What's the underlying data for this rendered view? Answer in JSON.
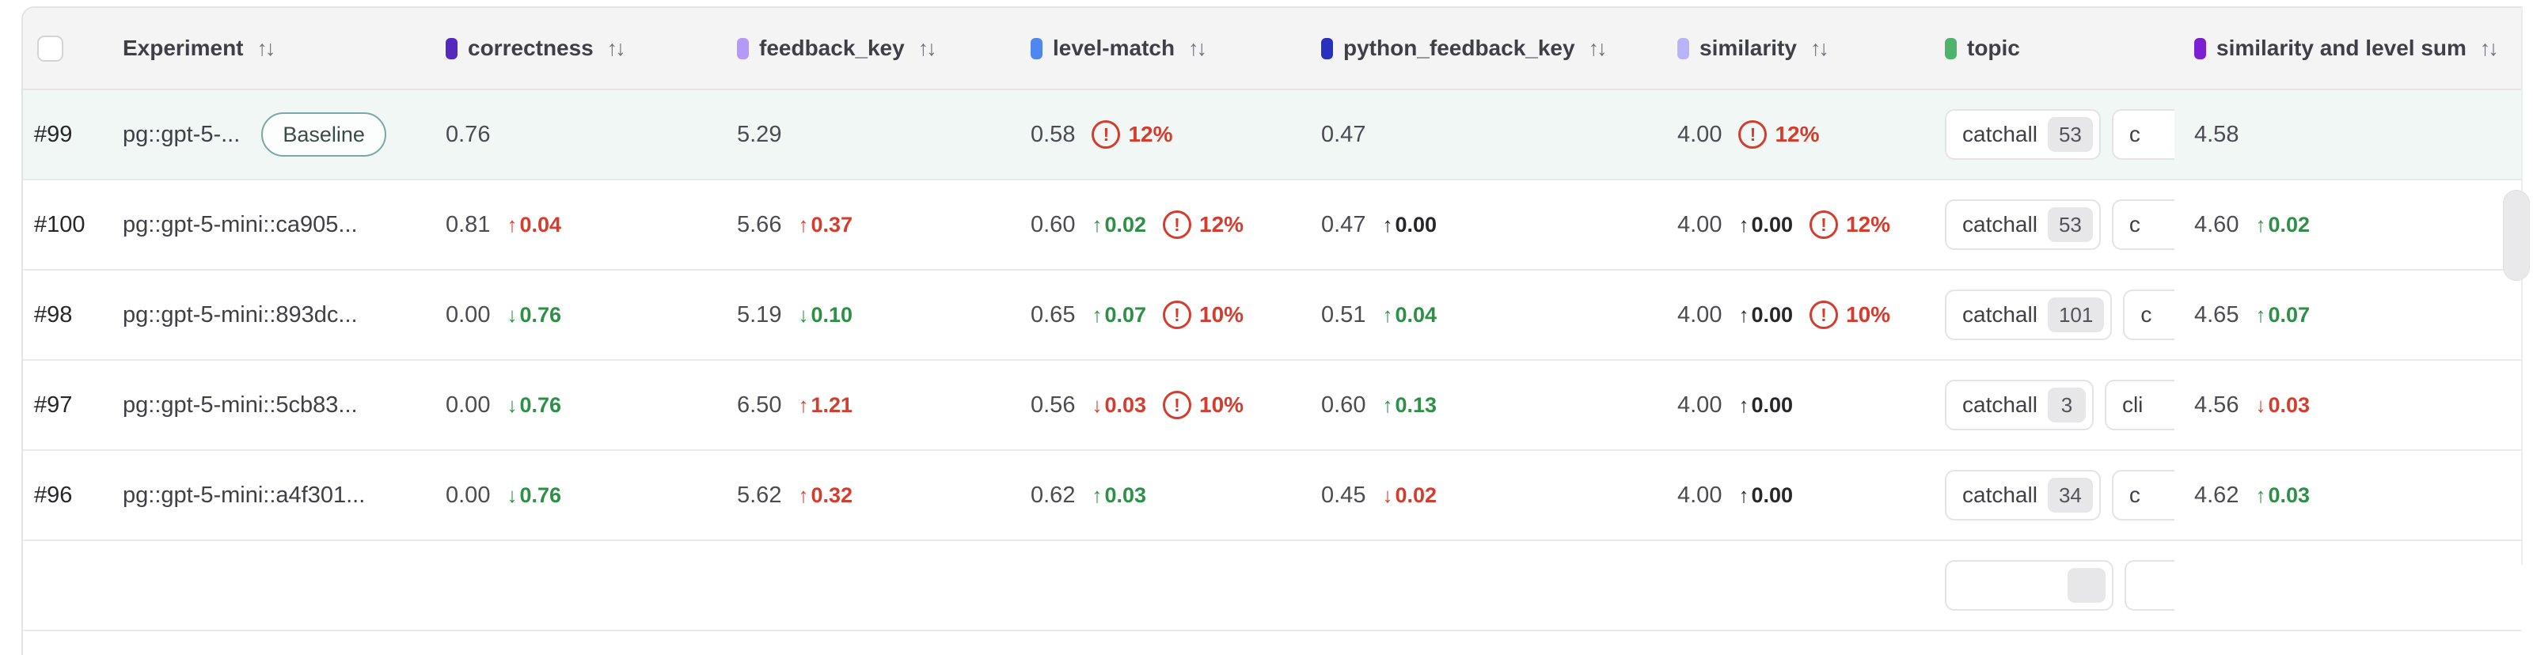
{
  "table": {
    "sort_icon": "↑↓",
    "select_all_checked": false,
    "columns": [
      {
        "key": "experiment",
        "label": "Experiment",
        "dot": null,
        "sortable": true
      },
      {
        "key": "correctness",
        "label": "correctness",
        "dot": "#5429bd",
        "sortable": true
      },
      {
        "key": "feedback_key",
        "label": "feedback_key",
        "dot": "#b49af8",
        "sortable": true
      },
      {
        "key": "level_match",
        "label": "level-match",
        "dot": "#4f86ef",
        "sortable": true
      },
      {
        "key": "python_feedback_key",
        "label": "python_feedback_key",
        "dot": "#2930bf",
        "sortable": true
      },
      {
        "key": "similarity",
        "label": "similarity",
        "dot": "#b9b4fa",
        "sortable": true
      },
      {
        "key": "topic",
        "label": "topic",
        "dot": "#4eb36b",
        "sortable": false
      },
      {
        "key": "sum",
        "label": "similarity and level sum",
        "dot": "#7b1fd2",
        "sortable": true
      }
    ],
    "tone_colors": {
      "bad": "#d43d2e",
      "good": "#2e8f47",
      "neutral": "#27272a"
    },
    "baseline_row_color": "#f1f7f4",
    "rows": [
      {
        "id": "#99",
        "experiment": "pg::gpt-5-...",
        "baseline_badge": "Baseline",
        "is_baseline": true,
        "metrics": {
          "correctness": {
            "value": "0.76"
          },
          "feedback_key": {
            "value": "5.29"
          },
          "level_match": {
            "value": "0.58",
            "warn": "12%"
          },
          "python_feedback_key": {
            "value": "0.47"
          },
          "similarity": {
            "value": "4.00",
            "warn": "12%"
          },
          "sum": {
            "value": "4.58"
          }
        },
        "topics": [
          {
            "label": "catchall",
            "count": "53"
          },
          {
            "label": "c",
            "clipped": true
          }
        ]
      },
      {
        "id": "#100",
        "experiment": "pg::gpt-5-mini::ca905...",
        "metrics": {
          "correctness": {
            "value": "0.81",
            "delta": {
              "dir": "up",
              "value": "0.04",
              "tone": "bad"
            }
          },
          "feedback_key": {
            "value": "5.66",
            "delta": {
              "dir": "up",
              "value": "0.37",
              "tone": "bad"
            }
          },
          "level_match": {
            "value": "0.60",
            "delta": {
              "dir": "up",
              "value": "0.02",
              "tone": "good"
            },
            "warn": "12%"
          },
          "python_feedback_key": {
            "value": "0.47",
            "delta": {
              "dir": "up",
              "value": "0.00",
              "tone": "neutral"
            }
          },
          "similarity": {
            "value": "4.00",
            "delta": {
              "dir": "up",
              "value": "0.00",
              "tone": "neutral"
            },
            "warn": "12%"
          },
          "sum": {
            "value": "4.60",
            "delta": {
              "dir": "up",
              "value": "0.02",
              "tone": "good"
            }
          }
        },
        "topics": [
          {
            "label": "catchall",
            "count": "53"
          },
          {
            "label": "c",
            "clipped": true
          }
        ]
      },
      {
        "id": "#98",
        "experiment": "pg::gpt-5-mini::893dc...",
        "metrics": {
          "correctness": {
            "value": "0.00",
            "delta": {
              "dir": "down",
              "value": "0.76",
              "tone": "good"
            }
          },
          "feedback_key": {
            "value": "5.19",
            "delta": {
              "dir": "down",
              "value": "0.10",
              "tone": "good"
            }
          },
          "level_match": {
            "value": "0.65",
            "delta": {
              "dir": "up",
              "value": "0.07",
              "tone": "good"
            },
            "warn": "10%"
          },
          "python_feedback_key": {
            "value": "0.51",
            "delta": {
              "dir": "up",
              "value": "0.04",
              "tone": "good"
            }
          },
          "similarity": {
            "value": "4.00",
            "delta": {
              "dir": "up",
              "value": "0.00",
              "tone": "neutral"
            },
            "warn": "10%"
          },
          "sum": {
            "value": "4.65",
            "delta": {
              "dir": "up",
              "value": "0.07",
              "tone": "good"
            }
          }
        },
        "topics": [
          {
            "label": "catchall",
            "count": "101"
          },
          {
            "label": "c",
            "clipped": true
          }
        ]
      },
      {
        "id": "#97",
        "experiment": "pg::gpt-5-mini::5cb83...",
        "metrics": {
          "correctness": {
            "value": "0.00",
            "delta": {
              "dir": "down",
              "value": "0.76",
              "tone": "good"
            }
          },
          "feedback_key": {
            "value": "6.50",
            "delta": {
              "dir": "up",
              "value": "1.21",
              "tone": "bad"
            }
          },
          "level_match": {
            "value": "0.56",
            "delta": {
              "dir": "down",
              "value": "0.03",
              "tone": "bad"
            },
            "warn": "10%"
          },
          "python_feedback_key": {
            "value": "0.60",
            "delta": {
              "dir": "up",
              "value": "0.13",
              "tone": "good"
            }
          },
          "similarity": {
            "value": "4.00",
            "delta": {
              "dir": "up",
              "value": "0.00",
              "tone": "neutral"
            }
          },
          "sum": {
            "value": "4.56",
            "delta": {
              "dir": "down",
              "value": "0.03",
              "tone": "bad"
            }
          }
        },
        "topics": [
          {
            "label": "catchall",
            "count": "3"
          },
          {
            "label": "cli",
            "clipped": true
          }
        ]
      },
      {
        "id": "#96",
        "experiment": "pg::gpt-5-mini::a4f301...",
        "metrics": {
          "correctness": {
            "value": "0.00",
            "delta": {
              "dir": "down",
              "value": "0.76",
              "tone": "good"
            }
          },
          "feedback_key": {
            "value": "5.62",
            "delta": {
              "dir": "up",
              "value": "0.32",
              "tone": "bad"
            }
          },
          "level_match": {
            "value": "0.62",
            "delta": {
              "dir": "up",
              "value": "0.03",
              "tone": "good"
            }
          },
          "python_feedback_key": {
            "value": "0.45",
            "delta": {
              "dir": "down",
              "value": "0.02",
              "tone": "bad"
            }
          },
          "similarity": {
            "value": "4.00",
            "delta": {
              "dir": "up",
              "value": "0.00",
              "tone": "neutral"
            }
          },
          "sum": {
            "value": "4.62",
            "delta": {
              "dir": "up",
              "value": "0.03",
              "tone": "good"
            }
          }
        },
        "topics": [
          {
            "label": "catchall",
            "count": "34"
          },
          {
            "label": "c",
            "clipped": true
          }
        ]
      },
      {
        "id": "",
        "experiment": "",
        "metrics": {},
        "topics": [
          {
            "label": "",
            "count": "",
            "empty": true
          },
          {
            "label": "",
            "clipped": true,
            "empty": true
          }
        ]
      }
    ]
  }
}
